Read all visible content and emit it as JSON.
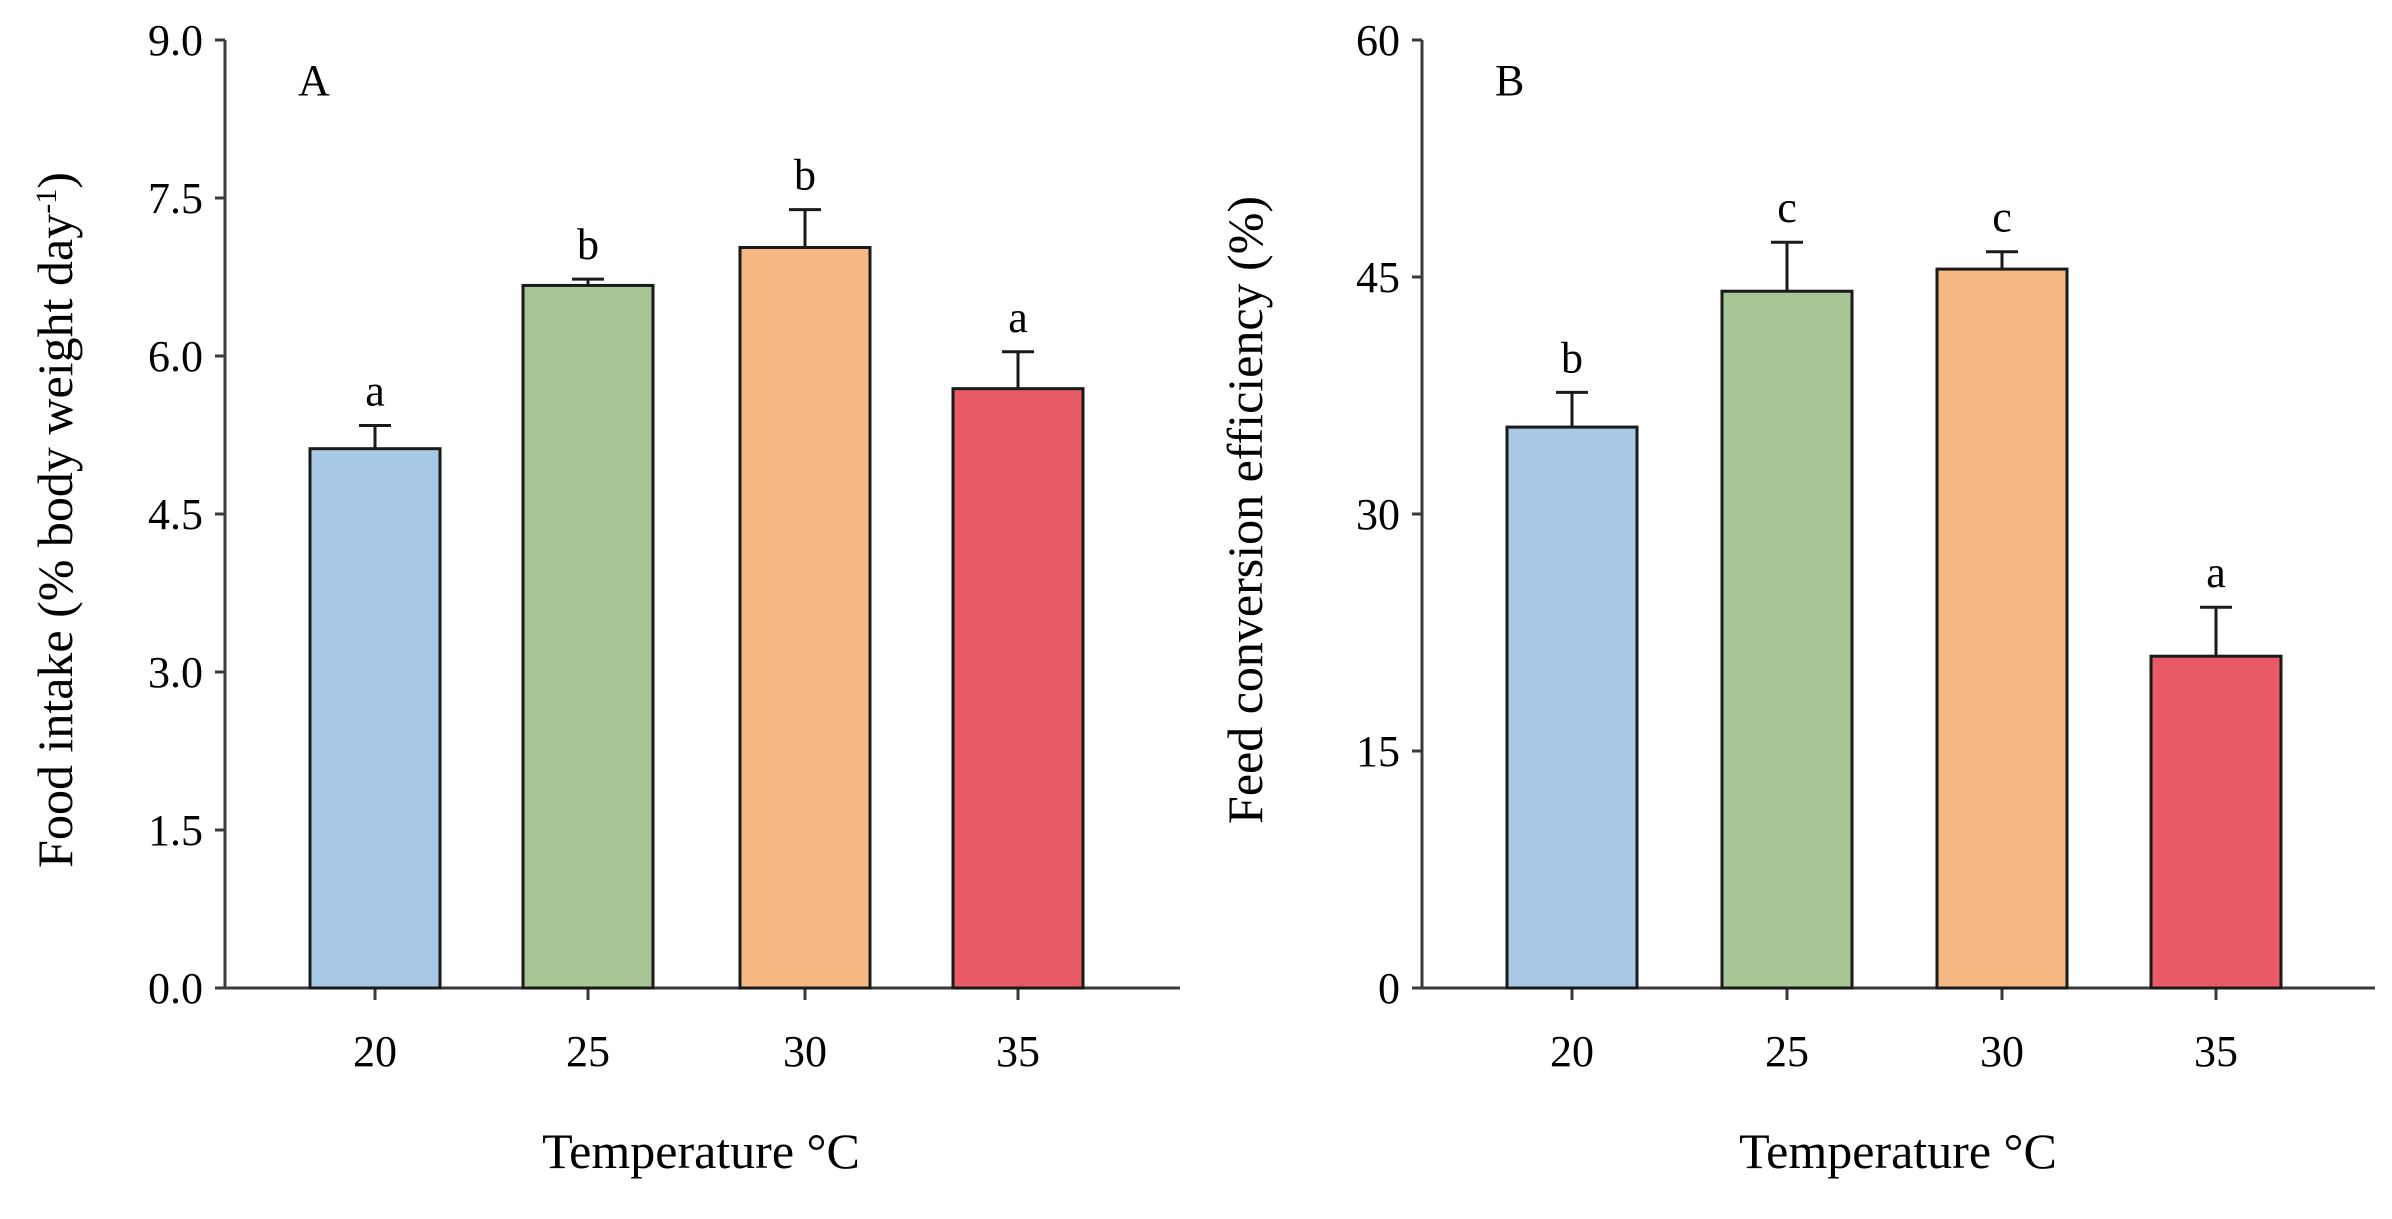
{
  "chart_data": [
    {
      "type": "bar",
      "panel_label": "A",
      "xlabel": "Temperature °C",
      "ylabel": "Food intake (% body weight day",
      "ylabel_superscript": "-1",
      "ylabel_suffix": ")",
      "ylim": [
        0,
        9
      ],
      "yticks": [
        "0.0",
        "1.5",
        "3.0",
        "4.5",
        "6.0",
        "7.5",
        "9.0"
      ],
      "categories": [
        "20",
        "25",
        "30",
        "35"
      ],
      "values": [
        5.12,
        6.67,
        7.03,
        5.69
      ],
      "errors": [
        0.22,
        0.06,
        0.36,
        0.35
      ],
      "significance": [
        "a",
        "b",
        "b",
        "a"
      ],
      "colors": [
        "#a7c9e6",
        "#a8c595",
        "#f5b882",
        "#e85a66"
      ]
    },
    {
      "type": "bar",
      "panel_label": "B",
      "xlabel": "Temperature °C",
      "ylabel": "Feed conversion efficiency (%)",
      "ylabel_superscript": "",
      "ylabel_suffix": "",
      "ylim": [
        0,
        60
      ],
      "yticks": [
        "0",
        "15",
        "30",
        "45",
        "60"
      ],
      "categories": [
        "20",
        "25",
        "30",
        "35"
      ],
      "values": [
        35.5,
        44.1,
        45.5,
        21.0
      ],
      "errors": [
        2.2,
        3.1,
        1.1,
        3.1
      ],
      "significance": [
        "b",
        "c",
        "c",
        "a"
      ],
      "colors": [
        "#a7c9e6",
        "#a8c595",
        "#f5b882",
        "#e85a66"
      ]
    }
  ]
}
